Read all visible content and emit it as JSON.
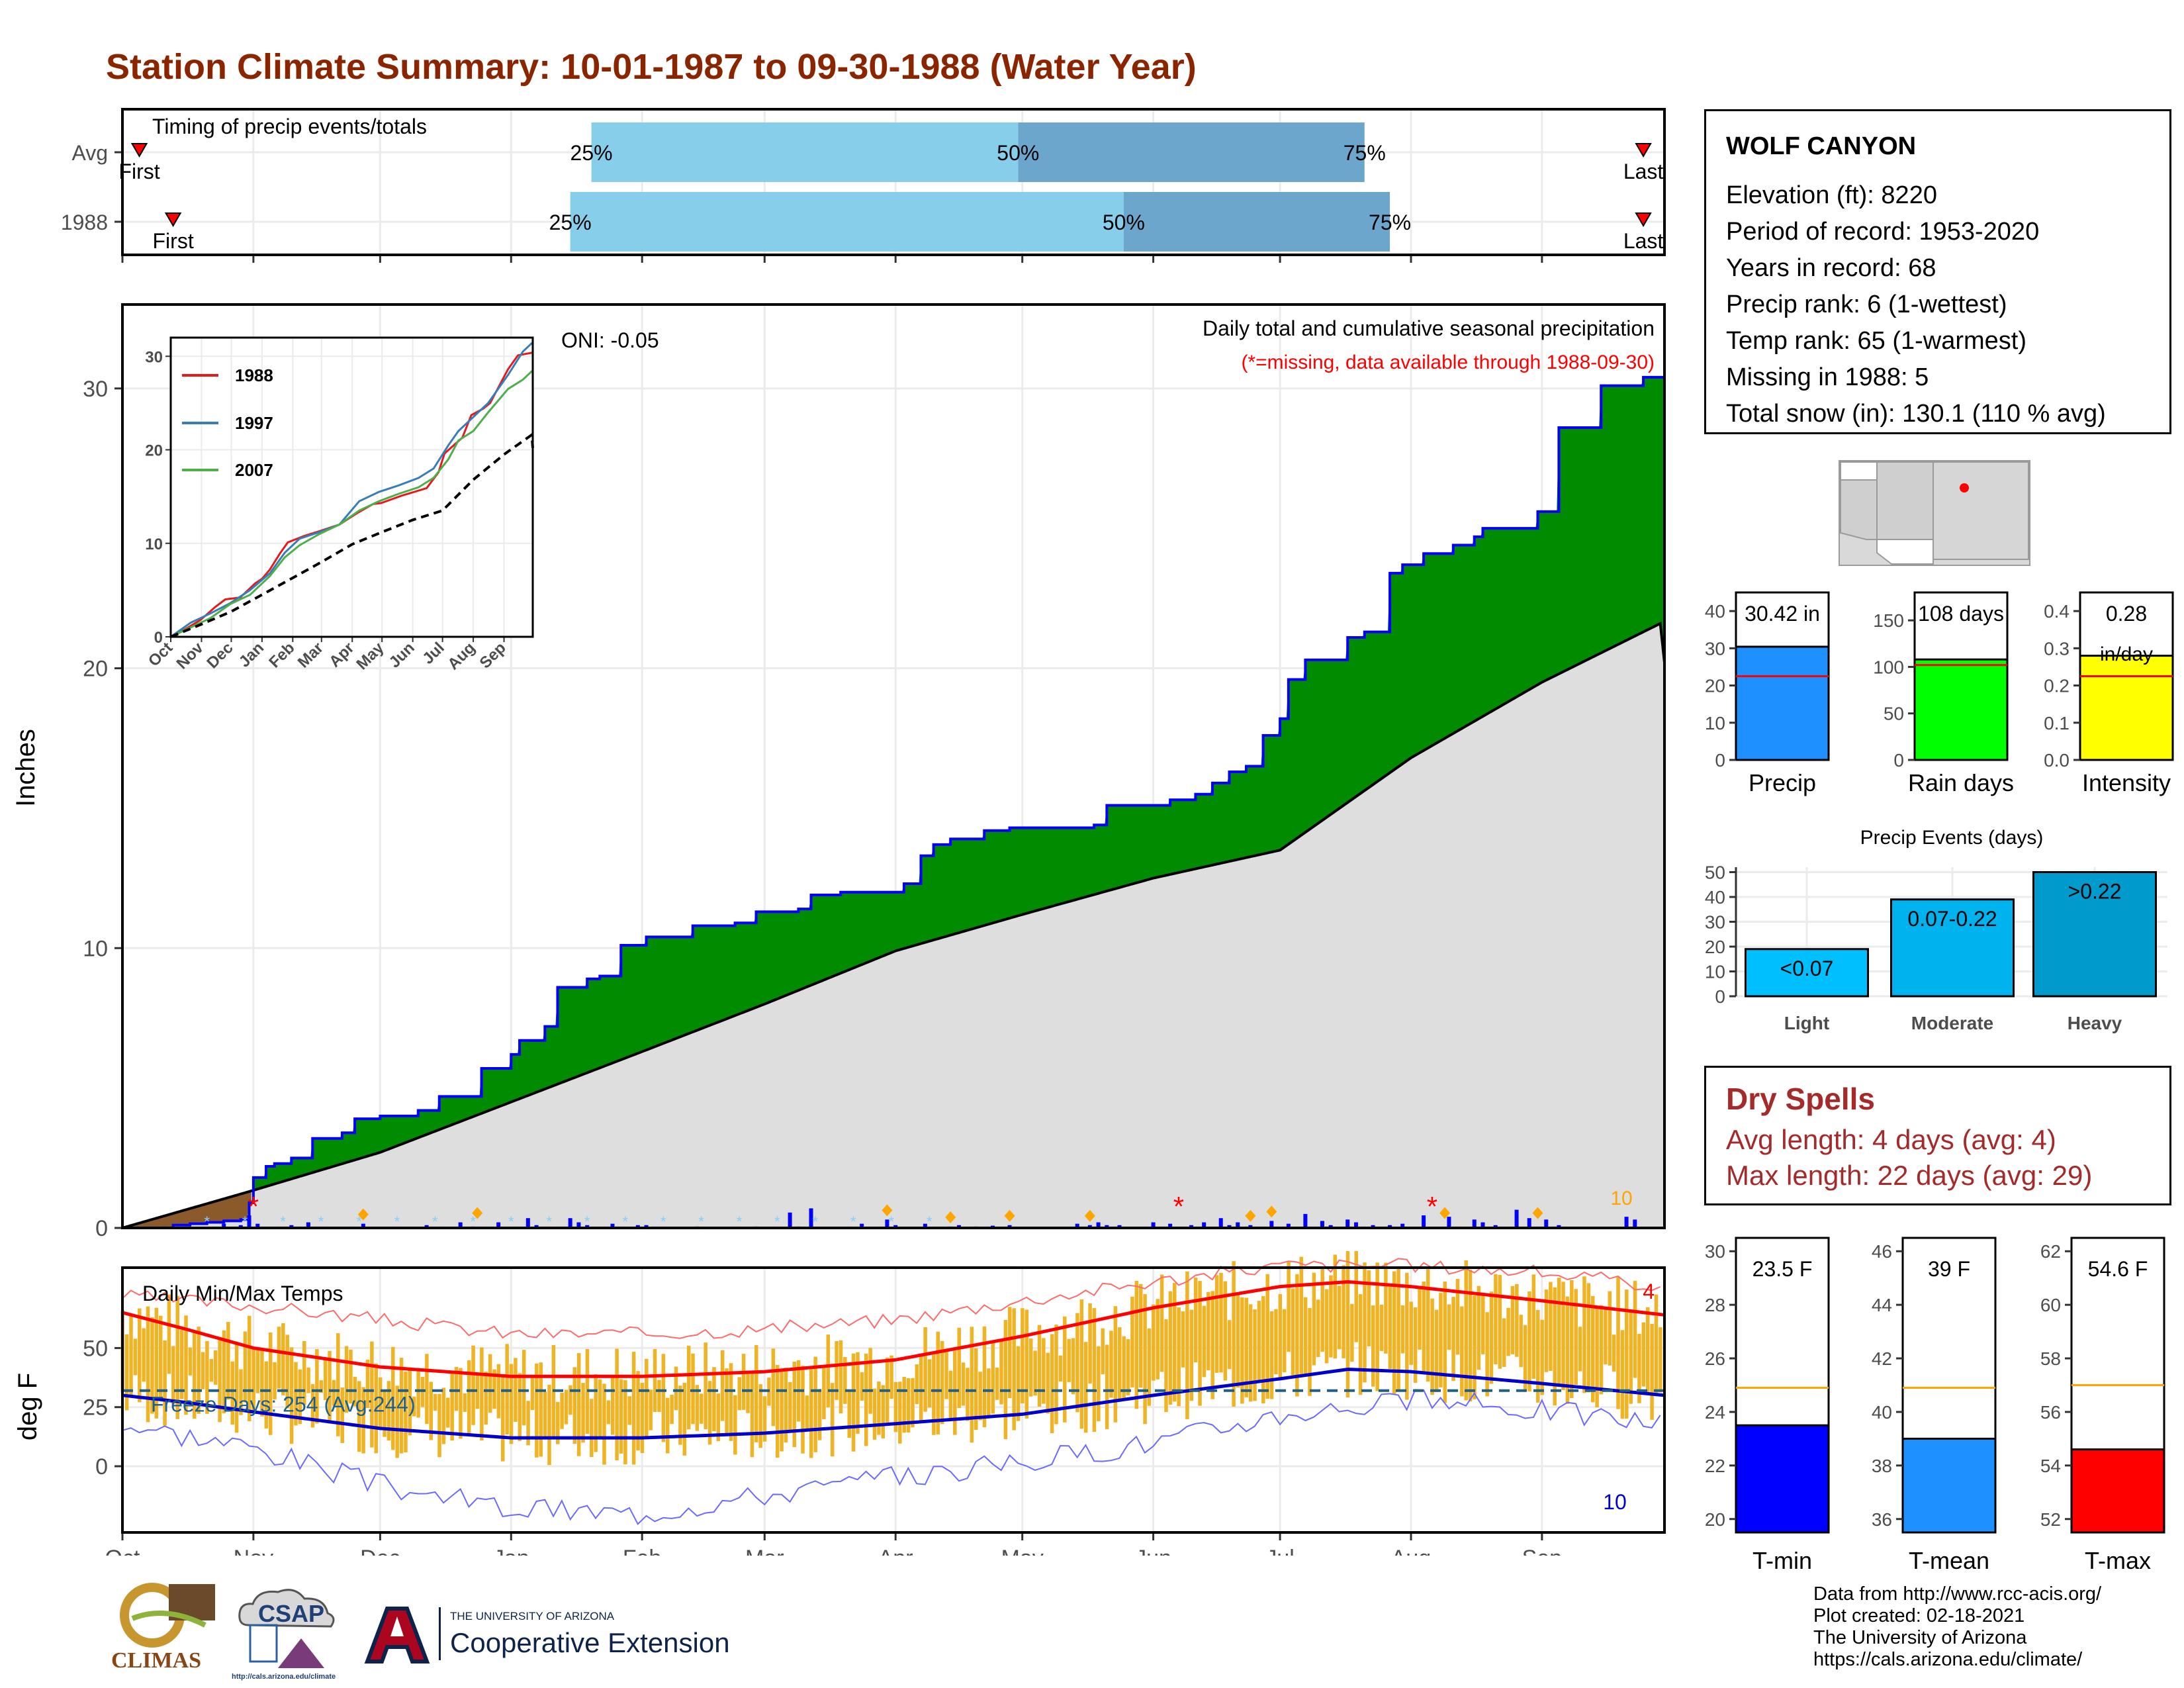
{
  "page_title": "Station Climate Summary: 10-01-1987 to 09-30-1988 (Water Year)",
  "timing": {
    "label": "Timing of precip events/totals",
    "rows": [
      {
        "name": "Avg",
        "first_label": "First",
        "last_label": "Last",
        "first_day": 4,
        "last_day": 360,
        "p25_day": 111,
        "p50_day": 212,
        "p75_day": 294,
        "p25": "25%",
        "p50": "50%",
        "p75": "75%"
      },
      {
        "name": "1988",
        "first_label": "First",
        "last_label": "Last",
        "first_day": 12,
        "last_day": 360,
        "p25_day": 106,
        "p50_day": 237,
        "p75_day": 300,
        "p25": "25%",
        "p50": "50%",
        "p75": "75%"
      }
    ],
    "colors": {
      "light": "#87CEEB",
      "dark": "#6CA6CD",
      "marker": "#FF0000"
    }
  },
  "chart_data": [
    {
      "id": "precip-main",
      "type": "area",
      "title": "Daily total and cumulative seasonal precipitation",
      "subtitle": "(*=missing, data available through 1988-09-30)",
      "ylabel": "Inches",
      "ylim": [
        0,
        33
      ],
      "yticks": [
        0,
        10,
        20,
        30
      ],
      "oni": "ONI: -0.05",
      "corner_count": "10",
      "months": [
        "Oct",
        "Nov",
        "Dec",
        "Jan",
        "Feb",
        "Mar",
        "Apr",
        "May",
        "Jun",
        "Jul",
        "Aug",
        "Sep"
      ],
      "month_days": [
        0,
        31,
        61,
        92,
        123,
        152,
        183,
        213,
        244,
        274,
        305,
        336
      ],
      "series": [
        {
          "name": "1988",
          "x": [
            0,
            5,
            12,
            16,
            20,
            24,
            28,
            30,
            31,
            34,
            36,
            40,
            45,
            52,
            55,
            61,
            70,
            75,
            85,
            92,
            94,
            100,
            103,
            110,
            113,
            118,
            124,
            129,
            135,
            145,
            150,
            160,
            163,
            170,
            180,
            185,
            189,
            192,
            196,
            204,
            210,
            212,
            230,
            233,
            248,
            254,
            258,
            262,
            266,
            270,
            274,
            276,
            280,
            290,
            294,
            300,
            303,
            308,
            315,
            320,
            322,
            335,
            340,
            350,
            360,
            365
          ],
          "values": [
            0,
            0,
            0.1,
            0.15,
            0.2,
            0.25,
            0.3,
            0.9,
            1.8,
            2.2,
            2.3,
            2.5,
            3.2,
            3.4,
            3.9,
            4.0,
            4.2,
            4.7,
            5.7,
            6.2,
            6.7,
            7.2,
            8.6,
            8.9,
            9.0,
            10.1,
            10.4,
            10.4,
            10.8,
            10.9,
            11.3,
            11.4,
            11.9,
            12.0,
            12.0,
            12.3,
            13.3,
            13.7,
            13.9,
            14.2,
            14.3,
            14.3,
            14.4,
            15.1,
            15.3,
            15.5,
            15.9,
            16.3,
            16.5,
            17.6,
            18.2,
            19.6,
            20.3,
            21.1,
            21.3,
            23.4,
            23.7,
            24.1,
            24.4,
            24.7,
            25.0,
            25.6,
            28.6,
            30.1,
            30.4,
            30.4
          ]
        },
        {
          "name": "Avg",
          "x": [
            0,
            30,
            61,
            92,
            123,
            152,
            183,
            213,
            244,
            274,
            305,
            336,
            364,
            365
          ],
          "values": [
            0,
            1.3,
            2.7,
            4.5,
            6.3,
            8.0,
            9.9,
            11.2,
            12.5,
            13.5,
            16.8,
            19.5,
            21.6,
            20.2
          ]
        }
      ],
      "daily_bars": {
        "x": [
          10,
          24,
          28,
          30,
          32,
          40,
          44,
          57,
          72,
          80,
          83,
          89,
          96,
          98,
          106,
          108,
          110,
          116,
          122,
          124,
          136,
          150,
          158,
          160,
          163,
          175,
          181,
          183,
          190,
          196,
          198,
          202,
          206,
          210,
          226,
          229,
          231,
          233,
          236,
          244,
          248,
          253,
          256,
          260,
          262,
          264,
          267,
          272,
          276,
          280,
          284,
          286,
          290,
          292,
          296,
          300,
          303,
          308,
          314,
          320,
          322,
          325,
          330,
          333,
          337,
          340,
          356,
          358
        ],
        "values": [
          0.05,
          0.15,
          0.1,
          0.45,
          0.15,
          0.1,
          0.2,
          0.15,
          0.1,
          0.2,
          0.05,
          0.2,
          0.35,
          0.1,
          0.35,
          0.2,
          0.1,
          0.15,
          0.1,
          0.1,
          0.05,
          0.05,
          0.55,
          0.05,
          0.7,
          0.15,
          0.3,
          0.1,
          0.15,
          0.05,
          0.1,
          0.05,
          0.08,
          0.1,
          0.15,
          0.1,
          0.2,
          0.1,
          0.1,
          0.2,
          0.15,
          0.1,
          0.2,
          0.35,
          0.1,
          0.2,
          0.1,
          0.25,
          0.15,
          0.5,
          0.25,
          0.1,
          0.3,
          0.2,
          0.1,
          0.1,
          0.15,
          0.45,
          0.4,
          0.3,
          0.2,
          0.1,
          0.65,
          0.35,
          0.3,
          0.1,
          0.4,
          0.3
        ]
      },
      "missing_days": [
        31,
        250,
        310
      ],
      "event_markers": [
        57,
        84,
        181,
        196,
        210,
        229,
        267,
        272,
        313,
        335
      ]
    },
    {
      "id": "inset",
      "type": "line",
      "ylim": [
        0,
        32
      ],
      "yticks": [
        0,
        10,
        20,
        30
      ],
      "months": [
        "Oct",
        "Nov",
        "Dec",
        "Jan",
        "Feb",
        "Mar",
        "Apr",
        "May",
        "Jun",
        "Jul",
        "Aug",
        "Sep"
      ],
      "series": [
        {
          "name": "1988",
          "color": "#E41A1C",
          "x": [
            0,
            5,
            30,
            45,
            55,
            70,
            85,
            92,
            100,
            110,
            118,
            135,
            150,
            170,
            189,
            204,
            212,
            233,
            258,
            270,
            276,
            294,
            303,
            315,
            322,
            340,
            350,
            365
          ],
          "values": [
            0,
            0.2,
            1.8,
            3.2,
            4.0,
            4.2,
            5.7,
            6.2,
            7.2,
            8.9,
            10.1,
            10.8,
            11.3,
            12.0,
            13.3,
            14.2,
            14.3,
            15.1,
            15.9,
            17.6,
            19.6,
            21.3,
            23.7,
            24.4,
            25.0,
            28.6,
            30.1,
            30.4
          ]
        },
        {
          "name": "1997",
          "color": "#377EB8",
          "x": [
            0,
            20,
            40,
            60,
            80,
            100,
            115,
            130,
            150,
            170,
            190,
            210,
            230,
            250,
            265,
            280,
            290,
            305,
            320,
            340,
            355,
            365
          ],
          "values": [
            0,
            1.5,
            2.5,
            3.6,
            5.0,
            6.8,
            9.0,
            10.5,
            11.2,
            12.0,
            14.5,
            15.5,
            16.2,
            17.0,
            18.0,
            20.5,
            22.0,
            23.5,
            25.0,
            28.0,
            30.5,
            31.5
          ]
        },
        {
          "name": "2007",
          "color": "#4DAF4A",
          "x": [
            0,
            20,
            40,
            60,
            80,
            100,
            115,
            130,
            150,
            170,
            190,
            210,
            230,
            250,
            265,
            280,
            290,
            305,
            320,
            340,
            355,
            365
          ],
          "values": [
            0,
            1.0,
            2.0,
            3.5,
            4.5,
            6.5,
            8.5,
            9.8,
            11.0,
            12.0,
            13.5,
            14.5,
            15.3,
            16.0,
            17.0,
            19.0,
            21.0,
            22.0,
            24.0,
            26.5,
            27.5,
            28.5
          ]
        },
        {
          "name": "Avg",
          "color": "#000000",
          "dashed": true,
          "x": [
            0,
            30,
            61,
            92,
            123,
            152,
            183,
            213,
            244,
            274,
            305,
            336,
            364,
            365
          ],
          "values": [
            0,
            1.3,
            2.7,
            4.5,
            6.3,
            8.0,
            9.9,
            11.2,
            12.5,
            13.5,
            16.8,
            19.5,
            21.6,
            20.2
          ]
        }
      ]
    },
    {
      "id": "bar-summaries",
      "type": "bar",
      "panels": [
        {
          "label": "Precip",
          "value": 30.42,
          "value_text": "30.42 in",
          "avg": 22.5,
          "ylim": [
            0,
            45
          ],
          "yticks": [
            0,
            10,
            20,
            30,
            40
          ],
          "color": "#1E90FF"
        },
        {
          "label": "Rain days",
          "value": 108,
          "value_text": "108 days",
          "avg": 102,
          "ylim": [
            0,
            180
          ],
          "yticks": [
            0,
            50,
            100,
            150
          ],
          "color": "#00FF00"
        },
        {
          "label": "Intensity",
          "value": 0.28,
          "value_text": "0.28",
          "value_unit": "in/day",
          "avg": 0.225,
          "ylim": [
            0,
            0.45
          ],
          "yticks": [
            "0.0",
            "0.1",
            "0.2",
            "0.3",
            "0.4"
          ],
          "color": "#FFFF00"
        }
      ]
    },
    {
      "id": "precip-events",
      "type": "bar",
      "title": "Precip Events (days)",
      "categories": [
        "Light",
        "Moderate",
        "Heavy"
      ],
      "values": [
        19,
        39,
        50
      ],
      "bar_labels": [
        "<0.07",
        "0.07-0.22",
        ">0.22"
      ],
      "ylim": [
        0,
        52
      ],
      "yticks": [
        0,
        10,
        20,
        30,
        40,
        50
      ],
      "colors": [
        "#00BFFF",
        "#00B2EE",
        "#009ACD"
      ]
    },
    {
      "id": "temps",
      "type": "line",
      "title": "Daily Min/Max Temps",
      "ylabel": "deg F",
      "ylim": [
        -28,
        84
      ],
      "yticks": [
        0,
        25,
        50
      ],
      "freeze_text": "Freeze Days: 254 (Avg:244)",
      "freeze_line": 32,
      "hot_count": "4",
      "cold_count": "10",
      "months": [
        "Oct",
        "Nov",
        "Dec",
        "Jan",
        "Feb",
        "Mar",
        "Apr",
        "May",
        "Jun",
        "Jul",
        "Aug",
        "Sep"
      ],
      "avg_max": {
        "x": [
          0,
          15,
          31,
          61,
          92,
          123,
          152,
          183,
          213,
          244,
          274,
          290,
          305,
          336,
          365
        ],
        "values": [
          65,
          58,
          50,
          42,
          38,
          38,
          40,
          45,
          55,
          67,
          76,
          78,
          76,
          70,
          64
        ]
      },
      "avg_min": {
        "x": [
          0,
          15,
          31,
          61,
          92,
          123,
          152,
          183,
          213,
          244,
          274,
          290,
          305,
          336,
          365
        ],
        "values": [
          30,
          27,
          23,
          16,
          12,
          12,
          14,
          18,
          22,
          30,
          37,
          41,
          40,
          35,
          30
        ]
      },
      "record_max": {
        "x": [
          0,
          31,
          61,
          92,
          123,
          152,
          183,
          213,
          244,
          274,
          305,
          336,
          365
        ],
        "values": [
          72,
          68,
          62,
          56,
          56,
          58,
          62,
          70,
          78,
          85,
          85,
          82,
          76
        ]
      },
      "record_min": {
        "x": [
          0,
          31,
          61,
          92,
          123,
          152,
          183,
          213,
          244,
          274,
          305,
          336,
          365
        ],
        "values": [
          18,
          8,
          -8,
          -18,
          -20,
          -12,
          -5,
          2,
          10,
          22,
          28,
          24,
          18
        ]
      }
    },
    {
      "id": "temp-summaries",
      "type": "bar",
      "panels": [
        {
          "label": "T-min",
          "value": 23.5,
          "value_text": "23.5 F",
          "avg": 24.9,
          "ylim": [
            19.5,
            30.5
          ],
          "yticks": [
            20,
            22,
            24,
            26,
            28,
            30
          ],
          "color": "#0000FF"
        },
        {
          "label": "T-mean",
          "value": 39,
          "value_text": "39 F",
          "avg": 40.9,
          "ylim": [
            35.5,
            46.5
          ],
          "yticks": [
            36,
            38,
            40,
            42,
            44,
            46
          ],
          "color": "#1E90FF"
        },
        {
          "label": "T-max",
          "value": 54.6,
          "value_text": "54.6 F",
          "avg": 57.0,
          "ylim": [
            51.5,
            62.5
          ],
          "yticks": [
            52,
            54,
            56,
            58,
            60,
            62
          ],
          "color": "#FF0000"
        }
      ]
    }
  ],
  "station": {
    "name": "WOLF CANYON",
    "lines": [
      "Elevation (ft): 8220",
      "Period of record: 1953-2020",
      "Years in record: 68",
      "Precip rank: 6 (1-wettest)",
      "Temp rank: 65 (1-warmest)",
      "Missing in 1988: 5",
      "Total snow (in): 130.1 (110 % avg)"
    ]
  },
  "dry_spells": {
    "title": "Dry Spells",
    "avg_line": "Avg length: 4 days (avg: 4)",
    "max_line": "Max length: 22 days (avg: 29)"
  },
  "credits": [
    "Data from http://www.rcc-acis.org/",
    "Plot created: 02-18-2021",
    "The University of Arizona",
    "https://cals.arizona.edu/climate/"
  ],
  "logos": {
    "climas": "CLIMAS",
    "csap": "CSAP",
    "csap_url": "http://cals.arizona.edu/climate",
    "ua_small": "THE UNIVERSITY OF ARIZONA",
    "ua_ext": "Cooperative Extension"
  }
}
